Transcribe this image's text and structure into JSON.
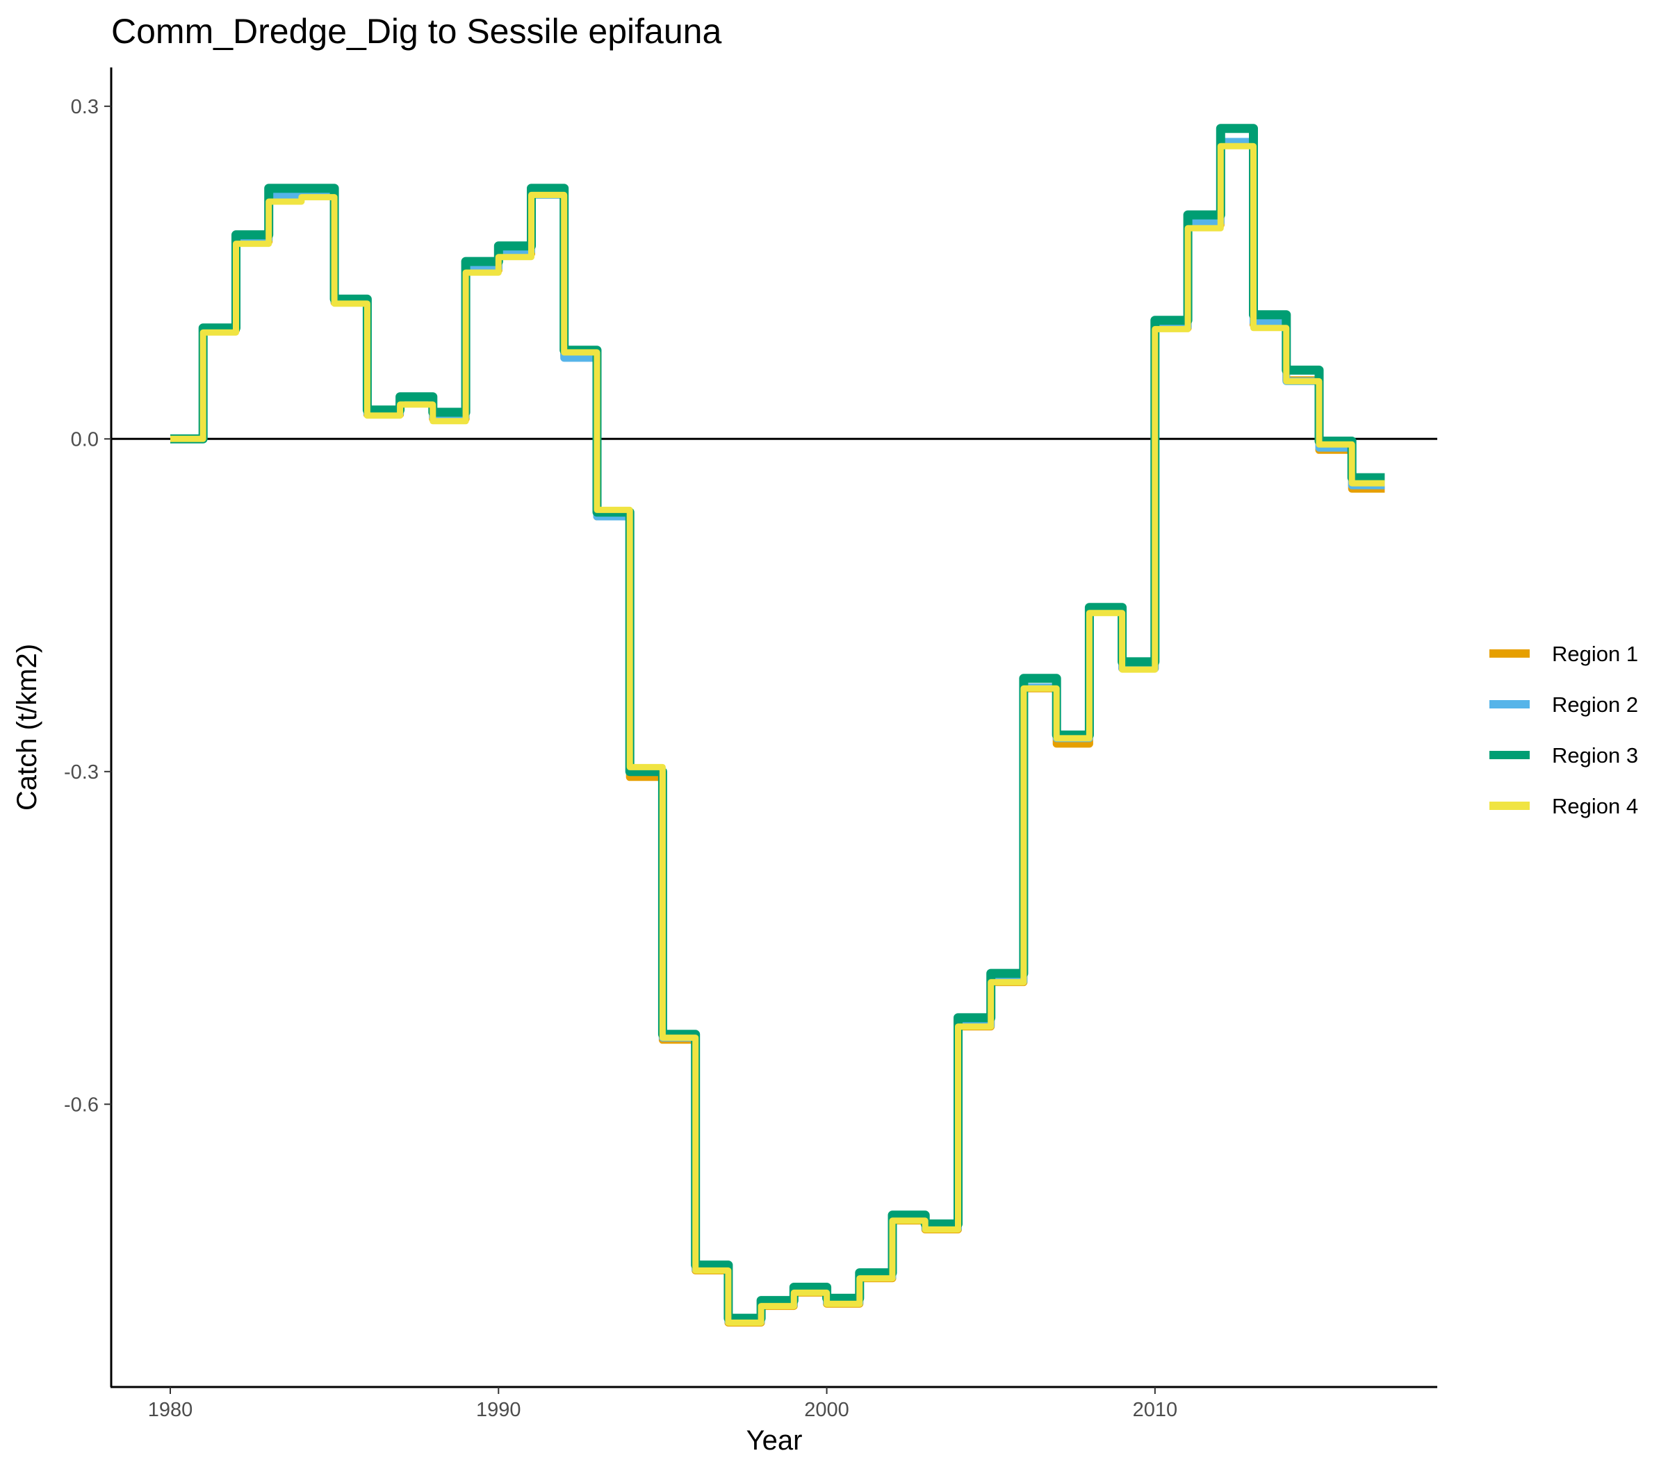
{
  "chart_data": {
    "type": "line",
    "step": "hv",
    "title": "Comm_Dredge_Dig to Sessile epifauna",
    "xlabel": "Year",
    "ylabel": "Catch (t/km2)",
    "xlim": [
      1978.2,
      2018.6
    ],
    "ylim": [
      -0.855,
      0.335
    ],
    "xticks": [
      1980,
      1990,
      2000,
      2010
    ],
    "xtick_labels": [
      "1980",
      "1990",
      "2000",
      "2010"
    ],
    "yticks": [
      -0.6,
      -0.3,
      0.0,
      0.3
    ],
    "ytick_labels": [
      "-0.6",
      "-0.3",
      "0.0",
      "0.3"
    ],
    "hline": 0,
    "grid": false,
    "legend_position": "right",
    "x": [
      1980,
      1981,
      1982,
      1983,
      1984,
      1985,
      1986,
      1987,
      1988,
      1989,
      1990,
      1991,
      1992,
      1993,
      1994,
      1995,
      1996,
      1997,
      1998,
      1999,
      2000,
      2001,
      2002,
      2003,
      2004,
      2005,
      2006,
      2007,
      2008,
      2009,
      2010,
      2011,
      2012,
      2013,
      2014,
      2015,
      2016,
      2017
    ],
    "series": [
      {
        "name": "Region 1",
        "color": "#E69F00",
        "values": [
          0.0,
          0.098,
          0.178,
          0.218,
          0.222,
          0.123,
          0.022,
          0.033,
          0.018,
          0.152,
          0.167,
          0.222,
          0.075,
          -0.07,
          -0.305,
          -0.542,
          -0.75,
          -0.797,
          -0.782,
          -0.77,
          -0.78,
          -0.757,
          -0.705,
          -0.713,
          -0.53,
          -0.49,
          -0.225,
          -0.275,
          -0.155,
          -0.207,
          0.1,
          0.193,
          0.265,
          0.103,
          0.053,
          -0.01,
          -0.045,
          -0.045
        ]
      },
      {
        "name": "Region 2",
        "color": "#56B4E9",
        "values": [
          0.0,
          0.1,
          0.18,
          0.22,
          0.223,
          0.124,
          0.023,
          0.034,
          0.02,
          0.154,
          0.169,
          0.22,
          0.073,
          -0.07,
          -0.3,
          -0.54,
          -0.749,
          -0.796,
          -0.781,
          -0.769,
          -0.779,
          -0.756,
          -0.704,
          -0.712,
          -0.529,
          -0.489,
          -0.224,
          -0.27,
          -0.155,
          -0.207,
          0.101,
          0.195,
          0.268,
          0.105,
          0.052,
          -0.008,
          -0.042,
          -0.042
        ]
      },
      {
        "name": "Region 3",
        "color": "#009E73",
        "values": [
          0.0,
          0.1,
          0.184,
          0.226,
          0.226,
          0.126,
          0.026,
          0.038,
          0.024,
          0.16,
          0.174,
          0.226,
          0.08,
          -0.066,
          -0.3,
          -0.537,
          -0.745,
          -0.793,
          -0.777,
          -0.765,
          -0.775,
          -0.752,
          -0.7,
          -0.708,
          -0.522,
          -0.482,
          -0.216,
          -0.267,
          -0.152,
          -0.201,
          0.107,
          0.202,
          0.28,
          0.112,
          0.062,
          -0.002,
          -0.035,
          -0.035
        ]
      },
      {
        "name": "Region 4",
        "color": "#F0E442",
        "values": [
          0.0,
          0.096,
          0.176,
          0.214,
          0.218,
          0.122,
          0.021,
          0.031,
          0.016,
          0.15,
          0.164,
          0.22,
          0.078,
          -0.064,
          -0.296,
          -0.54,
          -0.75,
          -0.797,
          -0.782,
          -0.77,
          -0.78,
          -0.757,
          -0.705,
          -0.713,
          -0.53,
          -0.49,
          -0.225,
          -0.27,
          -0.157,
          -0.208,
          0.099,
          0.19,
          0.264,
          0.1,
          0.052,
          -0.005,
          -0.04,
          -0.04
        ]
      }
    ]
  }
}
